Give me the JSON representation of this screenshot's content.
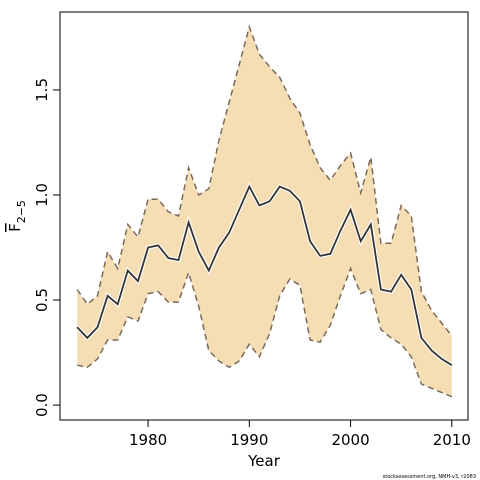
{
  "chart_data": {
    "type": "line",
    "x_label": "Year",
    "y_label": "F",
    "y_label_sub": "2−5",
    "footnote": "stockassessment.org, NMH-v3, r2083",
    "x": [
      1973,
      1974,
      1975,
      1976,
      1977,
      1978,
      1979,
      1980,
      1981,
      1982,
      1983,
      1984,
      1985,
      1986,
      1987,
      1988,
      1989,
      1990,
      1991,
      1992,
      1993,
      1994,
      1995,
      1996,
      1997,
      1998,
      1999,
      2000,
      2001,
      2002,
      2003,
      2004,
      2005,
      2006,
      2007,
      2008,
      2009,
      2010
    ],
    "series": [
      {
        "color": "#333333",
        "values": [
          0.37,
          0.32,
          0.37,
          0.52,
          0.48,
          0.64,
          0.59,
          0.75,
          0.76,
          0.7,
          0.69,
          0.87,
          0.73,
          0.64,
          0.75,
          0.82,
          0.93,
          1.04,
          0.95,
          0.97,
          1.04,
          1.02,
          0.97,
          0.78,
          0.71,
          0.72,
          0.83,
          0.93,
          0.78,
          0.86,
          0.55,
          0.54,
          0.62,
          0.55,
          0.32,
          0.26,
          0.22,
          0.19
        ]
      }
    ],
    "band": {
      "color": "#f5deb3",
      "line_color": "#7a6a5a",
      "upper": [
        0.55,
        0.48,
        0.52,
        0.73,
        0.65,
        0.86,
        0.8,
        0.98,
        0.98,
        0.92,
        0.9,
        1.13,
        1.0,
        1.03,
        1.26,
        1.44,
        1.62,
        1.8,
        1.67,
        1.61,
        1.56,
        1.46,
        1.39,
        1.24,
        1.13,
        1.07,
        1.14,
        1.2,
        1.01,
        1.18,
        0.77,
        0.77,
        0.95,
        0.9,
        0.54,
        0.45,
        0.39,
        0.33
      ],
      "lower": [
        0.19,
        0.18,
        0.22,
        0.31,
        0.31,
        0.42,
        0.4,
        0.53,
        0.54,
        0.49,
        0.49,
        0.63,
        0.47,
        0.26,
        0.21,
        0.18,
        0.21,
        0.29,
        0.23,
        0.34,
        0.52,
        0.6,
        0.57,
        0.31,
        0.3,
        0.38,
        0.52,
        0.65,
        0.53,
        0.55,
        0.36,
        0.32,
        0.29,
        0.23,
        0.1,
        0.08,
        0.06,
        0.04
      ]
    },
    "xlim": [
      1971.3,
      2011.6
    ],
    "ylim": [
      -0.071,
      1.871
    ],
    "xticks": [
      1980,
      1990,
      2000,
      2010
    ],
    "yticks": [
      {
        "value": 0,
        "label": "0.0"
      },
      {
        "value": 0.5,
        "label": "0.5"
      },
      {
        "value": 1,
        "label": "1.0"
      },
      {
        "value": 1.5,
        "label": "1.5"
      }
    ]
  }
}
